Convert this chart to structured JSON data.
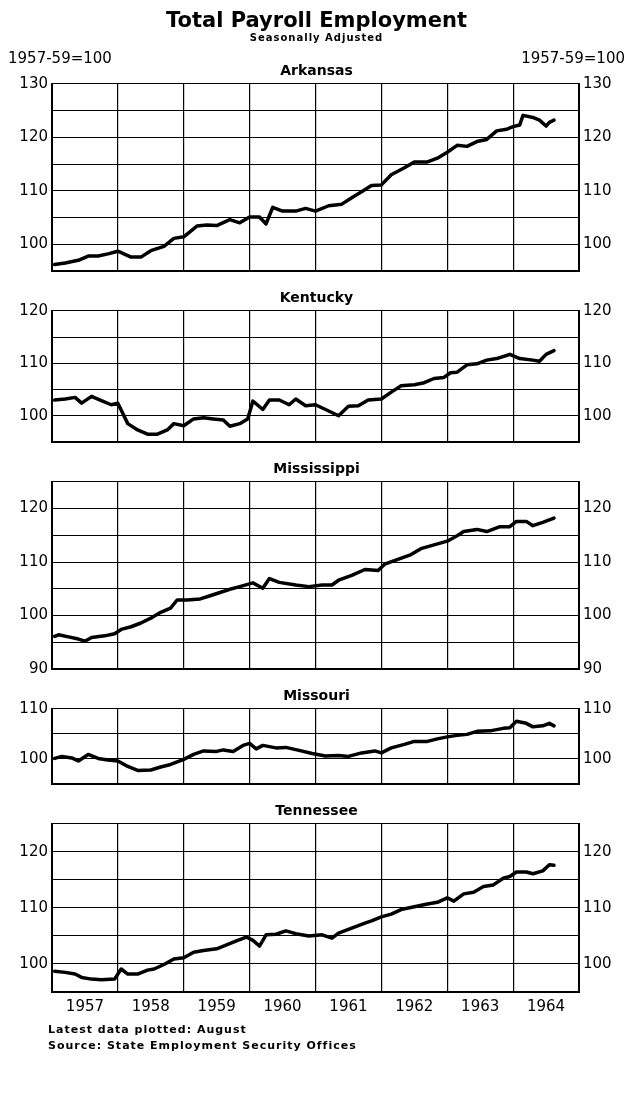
{
  "chart_data": [
    {
      "type": "other",
      "title": "Total Payroll Employment",
      "subtitle": "Seasonally Adjusted"
    },
    {
      "type": "line",
      "title": "Arkansas",
      "ylabel": "1957-59=100",
      "y2label": "1957-59=100",
      "marker": "none",
      "grid": true,
      "legend": false,
      "tick_labels": "y",
      "xlim": [
        1957,
        1965
      ],
      "xticks": [
        {
          "value": 1958,
          "label": null
        },
        {
          "value": 1959,
          "label": null
        },
        {
          "value": 1960,
          "label": null
        },
        {
          "value": 1961,
          "label": null
        },
        {
          "value": 1962,
          "label": null
        },
        {
          "value": 1963,
          "label": null
        },
        {
          "value": 1964,
          "label": null
        }
      ],
      "ylim": [
        95,
        130
      ],
      "yticks": [
        {
          "value": 95,
          "label": null
        },
        100,
        {
          "value": 105,
          "label": null
        },
        110,
        {
          "value": 115,
          "label": null
        },
        120,
        {
          "value": 125,
          "label": null
        },
        130
      ],
      "y2lim": [
        95,
        130
      ],
      "y2ticks": [
        100,
        110,
        120,
        130
      ],
      "series": [
        {
          "color": "#000000",
          "x": [
            1957.04,
            1957.2,
            1957.4,
            1957.55,
            1957.7,
            1957.85,
            1958.0,
            1958.2,
            1958.35,
            1958.5,
            1958.7,
            1958.85,
            1959.0,
            1959.2,
            1959.35,
            1959.5,
            1959.7,
            1959.85,
            1960.0,
            1960.15,
            1960.25,
            1960.35,
            1960.5,
            1960.7,
            1960.85,
            1961.0,
            1961.2,
            1961.4,
            1961.55,
            1961.7,
            1961.85,
            1962.0,
            1962.15,
            1962.35,
            1962.5,
            1962.7,
            1962.85,
            1963.0,
            1963.15,
            1963.3,
            1963.45,
            1963.6,
            1963.75,
            1963.9,
            1964.0,
            1964.1,
            1964.15,
            1964.3,
            1964.4,
            1964.5,
            1964.55,
            1964.62
          ],
          "values": [
            96.2,
            96.5,
            97.0,
            97.8,
            97.8,
            98.2,
            98.7,
            97.6,
            97.6,
            98.8,
            99.6,
            101.1,
            101.4,
            103.4,
            103.6,
            103.5,
            104.6,
            104.0,
            105.1,
            105.1,
            103.8,
            106.9,
            106.2,
            106.2,
            106.7,
            106.2,
            107.2,
            107.5,
            108.7,
            109.8,
            111.0,
            111.1,
            113.0,
            114.3,
            115.4,
            115.4,
            116.1,
            117.2,
            118.5,
            118.3,
            119.2,
            119.6,
            121.2,
            121.5,
            122.0,
            122.3,
            124.1,
            123.7,
            123.2,
            122.1,
            122.8,
            123.2
          ]
        }
      ]
    },
    {
      "type": "line",
      "title": "Kentucky",
      "marker": "none",
      "grid": true,
      "legend": false,
      "tick_labels": "y",
      "xlim": [
        1957,
        1965
      ],
      "xticks": [
        {
          "value": 1958,
          "label": null
        },
        {
          "value": 1959,
          "label": null
        },
        {
          "value": 1960,
          "label": null
        },
        {
          "value": 1961,
          "label": null
        },
        {
          "value": 1962,
          "label": null
        },
        {
          "value": 1963,
          "label": null
        },
        {
          "value": 1964,
          "label": null
        }
      ],
      "ylim": [
        95,
        120
      ],
      "yticks": [
        {
          "value": 95,
          "label": null
        },
        100,
        {
          "value": 105,
          "label": null
        },
        110,
        {
          "value": 115,
          "label": null
        },
        120
      ],
      "y2lim": [
        95,
        120
      ],
      "y2ticks": [
        100,
        110,
        120
      ],
      "series": [
        {
          "color": "#000000",
          "x": [
            1957.04,
            1957.2,
            1957.35,
            1957.45,
            1957.6,
            1957.75,
            1957.9,
            1958.0,
            1958.15,
            1958.3,
            1958.45,
            1958.6,
            1958.75,
            1958.85,
            1959.0,
            1959.15,
            1959.3,
            1959.45,
            1959.6,
            1959.7,
            1959.85,
            1959.97,
            1960.05,
            1960.2,
            1960.3,
            1960.45,
            1960.6,
            1960.7,
            1960.85,
            1961.0,
            1961.2,
            1961.35,
            1961.5,
            1961.65,
            1961.8,
            1962.0,
            1962.15,
            1962.3,
            1962.5,
            1962.65,
            1962.8,
            1962.95,
            1963.05,
            1963.15,
            1963.3,
            1963.45,
            1963.6,
            1963.75,
            1963.95,
            1964.1,
            1964.3,
            1964.4,
            1964.5,
            1964.62
          ],
          "values": [
            103.0,
            103.2,
            103.5,
            102.4,
            103.7,
            102.9,
            102.1,
            102.4,
            98.5,
            97.3,
            96.5,
            96.5,
            97.3,
            98.5,
            98.1,
            99.4,
            99.6,
            99.4,
            99.2,
            98.0,
            98.5,
            99.4,
            102.8,
            101.2,
            103.0,
            103.0,
            102.1,
            103.2,
            101.9,
            102.1,
            100.9,
            100.0,
            101.8,
            101.9,
            103.0,
            103.2,
            104.5,
            105.7,
            105.9,
            106.3,
            107.1,
            107.3,
            108.2,
            108.3,
            109.7,
            109.9,
            110.6,
            110.9,
            111.7,
            110.9,
            110.6,
            110.4,
            111.7,
            112.4
          ]
        }
      ]
    },
    {
      "type": "line",
      "title": "Mississippi",
      "marker": "none",
      "grid": true,
      "legend": false,
      "tick_labels": "y",
      "xlim": [
        1957,
        1965
      ],
      "xticks": [
        {
          "value": 1958,
          "label": null
        },
        {
          "value": 1959,
          "label": null
        },
        {
          "value": 1960,
          "label": null
        },
        {
          "value": 1961,
          "label": null
        },
        {
          "value": 1962,
          "label": null
        },
        {
          "value": 1963,
          "label": null
        },
        {
          "value": 1964,
          "label": null
        }
      ],
      "ylim": [
        90,
        125
      ],
      "yticks": [
        90,
        {
          "value": 95,
          "label": null
        },
        100,
        {
          "value": 105,
          "label": null
        },
        110,
        {
          "value": 115,
          "label": null
        },
        120,
        {
          "value": 125,
          "label": null
        }
      ],
      "y2lim": [
        90,
        125
      ],
      "y2ticks": [
        90,
        100,
        110,
        120
      ],
      "series": [
        {
          "color": "#000000",
          "x": [
            1957.04,
            1957.1,
            1957.25,
            1957.4,
            1957.5,
            1957.6,
            1957.8,
            1957.95,
            1958.05,
            1958.2,
            1958.35,
            1958.5,
            1958.65,
            1958.8,
            1958.9,
            1959.05,
            1959.25,
            1959.4,
            1959.55,
            1959.7,
            1959.85,
            1960.05,
            1960.2,
            1960.3,
            1960.45,
            1960.7,
            1960.9,
            1961.1,
            1961.25,
            1961.35,
            1961.55,
            1961.75,
            1961.95,
            1962.05,
            1962.25,
            1962.45,
            1962.6,
            1962.8,
            1963.0,
            1963.15,
            1963.25,
            1963.45,
            1963.6,
            1963.8,
            1963.95,
            1964.05,
            1964.2,
            1964.3,
            1964.45,
            1964.62
          ],
          "values": [
            96.1,
            96.4,
            96.0,
            95.6,
            95.2,
            95.9,
            96.2,
            96.6,
            97.4,
            97.9,
            98.6,
            99.5,
            100.6,
            101.4,
            102.9,
            102.9,
            103.1,
            103.7,
            104.3,
            104.9,
            105.4,
            106.1,
            105.1,
            106.9,
            106.2,
            105.7,
            105.4,
            105.7,
            105.7,
            106.6,
            107.5,
            108.6,
            108.4,
            109.6,
            110.5,
            111.4,
            112.5,
            113.2,
            113.9,
            114.9,
            115.7,
            116.1,
            115.7,
            116.6,
            116.6,
            117.6,
            117.6,
            116.8,
            117.4,
            118.2
          ]
        }
      ]
    },
    {
      "type": "line",
      "title": "Missouri",
      "marker": "none",
      "grid": true,
      "legend": false,
      "tick_labels": "y",
      "xlim": [
        1957,
        1965
      ],
      "xticks": [
        {
          "value": 1958,
          "label": null
        },
        {
          "value": 1959,
          "label": null
        },
        {
          "value": 1960,
          "label": null
        },
        {
          "value": 1961,
          "label": null
        },
        {
          "value": 1962,
          "label": null
        },
        {
          "value": 1963,
          "label": null
        },
        {
          "value": 1964,
          "label": null
        }
      ],
      "ylim": [
        95,
        110
      ],
      "yticks": [
        {
          "value": 95,
          "label": null
        },
        100,
        {
          "value": 105,
          "label": null
        },
        110
      ],
      "y2lim": [
        95,
        110
      ],
      "y2ticks": [
        100,
        110
      ],
      "series": [
        {
          "color": "#000000",
          "x": [
            1957.04,
            1957.15,
            1957.3,
            1957.4,
            1957.55,
            1957.7,
            1957.85,
            1958.0,
            1958.15,
            1958.3,
            1958.5,
            1958.65,
            1958.8,
            1959.0,
            1959.15,
            1959.3,
            1959.5,
            1959.6,
            1959.75,
            1959.9,
            1960.0,
            1960.1,
            1960.2,
            1960.4,
            1960.55,
            1960.75,
            1960.95,
            1961.15,
            1961.35,
            1961.5,
            1961.7,
            1961.9,
            1962.0,
            1962.15,
            1962.35,
            1962.5,
            1962.7,
            1962.85,
            1963.0,
            1963.15,
            1963.3,
            1963.45,
            1963.65,
            1963.85,
            1963.95,
            1964.05,
            1964.2,
            1964.3,
            1964.45,
            1964.55,
            1964.62
          ],
          "values": [
            100.1,
            100.5,
            100.2,
            99.6,
            100.9,
            100.1,
            99.8,
            99.6,
            98.5,
            97.7,
            97.8,
            98.4,
            98.9,
            99.9,
            100.9,
            101.6,
            101.5,
            101.8,
            101.5,
            102.7,
            103.1,
            102.0,
            102.7,
            102.2,
            102.3,
            101.7,
            101.1,
            100.6,
            100.7,
            100.5,
            101.2,
            101.6,
            101.2,
            102.2,
            102.9,
            103.5,
            103.5,
            104.0,
            104.4,
            104.7,
            104.9,
            105.5,
            105.6,
            106.1,
            106.2,
            107.5,
            107.1,
            106.4,
            106.6,
            107.1,
            106.6
          ]
        }
      ]
    },
    {
      "type": "line",
      "title": "Tennessee",
      "marker": "none",
      "grid": true,
      "legend": false,
      "annotations": [
        "Latest data plotted:  August",
        "Source:  State Employment Security Offices"
      ],
      "xlim": [
        1957,
        1965
      ],
      "xticks": [
        {
          "value": 1957.5,
          "label": "1957"
        },
        {
          "value": 1958,
          "label": null
        },
        {
          "value": 1958.5,
          "label": "1958"
        },
        {
          "value": 1959,
          "label": null
        },
        {
          "value": 1959.5,
          "label": "1959"
        },
        {
          "value": 1960,
          "label": null
        },
        {
          "value": 1960.5,
          "label": "1960"
        },
        {
          "value": 1961,
          "label": null
        },
        {
          "value": 1961.5,
          "label": "1961"
        },
        {
          "value": 1962,
          "label": null
        },
        {
          "value": 1962.5,
          "label": "1962"
        },
        {
          "value": 1963,
          "label": null
        },
        {
          "value": 1963.5,
          "label": "1963"
        },
        {
          "value": 1964,
          "label": null
        },
        {
          "value": 1964.5,
          "label": "1964"
        }
      ],
      "ylim": [
        95,
        125
      ],
      "yticks": [
        {
          "value": 95,
          "label": null
        },
        100,
        {
          "value": 105,
          "label": null
        },
        110,
        {
          "value": 115,
          "label": null
        },
        120,
        {
          "value": 125,
          "label": null
        }
      ],
      "y2lim": [
        95,
        125
      ],
      "y2ticks": [
        100,
        110,
        120
      ],
      "series": [
        {
          "color": "#000000",
          "x": [
            1957.04,
            1957.2,
            1957.35,
            1957.45,
            1957.6,
            1957.75,
            1957.95,
            1958.05,
            1958.15,
            1958.3,
            1958.45,
            1958.55,
            1958.7,
            1958.85,
            1959.0,
            1959.15,
            1959.3,
            1959.5,
            1959.65,
            1959.8,
            1959.95,
            1960.05,
            1960.15,
            1960.25,
            1960.4,
            1960.55,
            1960.7,
            1960.9,
            1961.1,
            1961.25,
            1961.35,
            1961.55,
            1961.75,
            1961.85,
            1962.0,
            1962.15,
            1962.3,
            1962.5,
            1962.7,
            1962.85,
            1963.0,
            1963.1,
            1963.25,
            1963.4,
            1963.55,
            1963.7,
            1963.85,
            1963.95,
            1964.05,
            1964.2,
            1964.3,
            1964.45,
            1964.55,
            1964.62
          ],
          "values": [
            98.7,
            98.5,
            98.2,
            97.6,
            97.3,
            97.2,
            97.3,
            99.1,
            98.2,
            98.2,
            98.9,
            99.1,
            99.9,
            100.9,
            101.1,
            102.1,
            102.4,
            102.7,
            103.4,
            104.1,
            104.8,
            104.2,
            103.2,
            105.2,
            105.3,
            105.9,
            105.4,
            105.0,
            105.2,
            104.6,
            105.5,
            106.4,
            107.3,
            107.7,
            108.4,
            108.9,
            109.7,
            110.2,
            110.7,
            111.0,
            111.8,
            111.2,
            112.5,
            112.8,
            113.8,
            114.1,
            115.3,
            115.6,
            116.4,
            116.4,
            116.1,
            116.6,
            117.7,
            117.6
          ]
        }
      ]
    }
  ]
}
